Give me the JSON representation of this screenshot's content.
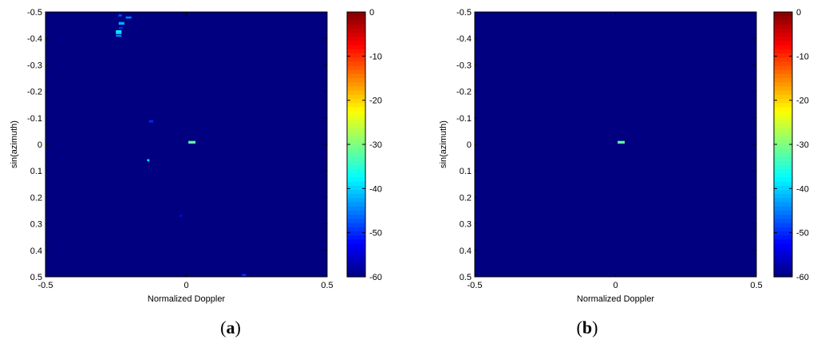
{
  "colormap": "jet",
  "background_color": "#00008F",
  "chart_data": [
    {
      "type": "heatmap",
      "panel_label": "a",
      "xlabel": "Normalized Doppler",
      "ylabel": "sin(azimuth)",
      "xlim": [
        -0.5,
        0.5
      ],
      "ylim": [
        -0.5,
        0.5
      ],
      "y_direction": "top-to-bottom",
      "x_ticks": [
        "-0.5",
        "0",
        "0.5"
      ],
      "x_tick_values": [
        -0.5,
        0,
        0.5
      ],
      "y_ticks": [
        "-0.5",
        "-0.4",
        "-0.3",
        "-0.2",
        "-0.1",
        "0",
        "0.1",
        "0.2",
        "0.3",
        "0.4",
        "0.5"
      ],
      "y_tick_values": [
        -0.5,
        -0.4,
        -0.3,
        -0.2,
        -0.1,
        0,
        0.1,
        0.2,
        0.3,
        0.4,
        0.5
      ],
      "colorbar": {
        "range": [
          -60,
          0
        ],
        "ticks": [
          "0",
          "-10",
          "-20",
          "-30",
          "-40",
          "-50",
          "-60"
        ],
        "tick_values": [
          0,
          -10,
          -20,
          -30,
          -40,
          -50,
          -60
        ]
      },
      "floor_db": -60,
      "points": [
        {
          "x": -0.235,
          "y": -0.487,
          "db": -48,
          "w": 0.012,
          "h": 0.008
        },
        {
          "x": -0.205,
          "y": -0.479,
          "db": -45,
          "w": 0.02,
          "h": 0.008
        },
        {
          "x": -0.23,
          "y": -0.457,
          "db": -42,
          "w": 0.02,
          "h": 0.01
        },
        {
          "x": -0.232,
          "y": -0.44,
          "db": -50,
          "w": 0.015,
          "h": 0.006
        },
        {
          "x": -0.24,
          "y": -0.426,
          "db": -38,
          "w": 0.02,
          "h": 0.01
        },
        {
          "x": -0.24,
          "y": -0.42,
          "db": -40,
          "w": 0.02,
          "h": 0.008
        },
        {
          "x": -0.24,
          "y": -0.41,
          "db": -44,
          "w": 0.02,
          "h": 0.006
        },
        {
          "x": -0.125,
          "y": -0.087,
          "db": -50,
          "w": 0.015,
          "h": 0.008
        },
        {
          "x": 0.02,
          "y": -0.008,
          "db": -32,
          "w": 0.025,
          "h": 0.01
        },
        {
          "x": -0.135,
          "y": 0.06,
          "db": -38,
          "w": 0.008,
          "h": 0.008
        },
        {
          "x": -0.02,
          "y": 0.27,
          "db": -52,
          "w": 0.008,
          "h": 0.008
        },
        {
          "x": 0.205,
          "y": 0.493,
          "db": -50,
          "w": 0.015,
          "h": 0.008
        }
      ]
    },
    {
      "type": "heatmap",
      "panel_label": "b",
      "xlabel": "Normalized Doppler",
      "ylabel": "sin(azimuth)",
      "xlim": [
        -0.5,
        0.5
      ],
      "ylim": [
        -0.5,
        0.5
      ],
      "y_direction": "top-to-bottom",
      "x_ticks": [
        "-0.5",
        "0",
        "0.5"
      ],
      "x_tick_values": [
        -0.5,
        0,
        0.5
      ],
      "y_ticks": [
        "-0.5",
        "-0.4",
        "-0.3",
        "-0.2",
        "-0.1",
        "0",
        "0.1",
        "0.2",
        "0.3",
        "0.4",
        "0.5"
      ],
      "y_tick_values": [
        -0.5,
        -0.4,
        -0.3,
        -0.2,
        -0.1,
        0,
        0.1,
        0.2,
        0.3,
        0.4,
        0.5
      ],
      "colorbar": {
        "range": [
          -60,
          0
        ],
        "ticks": [
          "0",
          "-10",
          "-20",
          "-30",
          "-40",
          "-50",
          "-60"
        ],
        "tick_values": [
          0,
          -10,
          -20,
          -30,
          -40,
          -50,
          -60
        ]
      },
      "floor_db": -60,
      "points": [
        {
          "x": 0.02,
          "y": -0.008,
          "db": -32,
          "w": 0.025,
          "h": 0.01
        }
      ]
    }
  ]
}
